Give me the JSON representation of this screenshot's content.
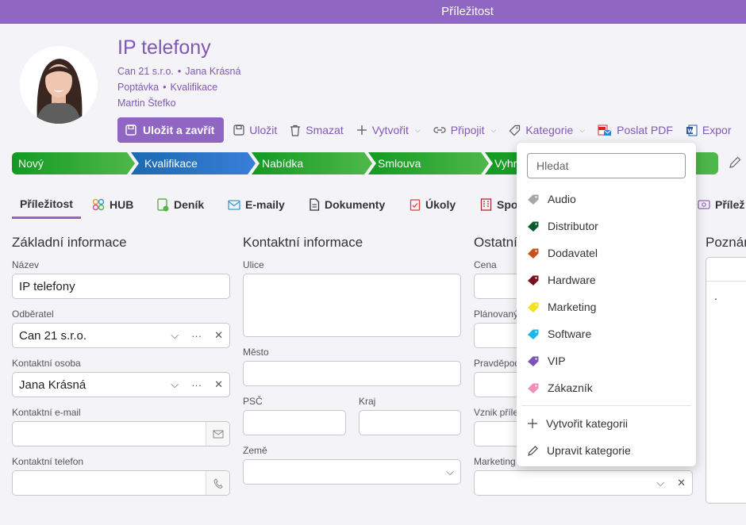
{
  "window": {
    "title": "Příležitost"
  },
  "header": {
    "title": "IP telefony",
    "company": "Can 21 s.r.o.",
    "contact": "Jana Krásná",
    "stage_type": "Poptávka",
    "stage": "Kvalifikace",
    "owner": "Martin Štefko"
  },
  "toolbar": {
    "save_close": "Uložit a zavřít",
    "save": "Uložit",
    "delete": "Smazat",
    "create": "Vytvořit",
    "attach": "Připojit",
    "category": "Kategorie",
    "send_pdf": "Poslat PDF",
    "export": "Expor"
  },
  "stages": [
    "Nový",
    "Kvalifikace",
    "Nabídka",
    "Smlouva",
    "Vyhr"
  ],
  "tabs": [
    "Příležitost",
    "HUB",
    "Deník",
    "E-maily",
    "Dokumenty",
    "Úkoly",
    "Spo",
    "Přílež"
  ],
  "sections": {
    "basic": "Základní informace",
    "contact": "Kontaktní informace",
    "other": "Ostatní",
    "notes": "Poznán"
  },
  "basic": {
    "name_label": "Název",
    "name_value": "IP telefony",
    "customer_label": "Odběratel",
    "customer_value": "Can 21 s.r.o.",
    "person_label": "Kontaktní osoba",
    "person_value": "Jana Krásná",
    "email_label": "Kontaktní e-mail",
    "phone_label": "Kontaktní telefon"
  },
  "contact": {
    "street_label": "Ulice",
    "city_label": "Město",
    "zip_label": "PSČ",
    "region_label": "Kraj",
    "country_label": "Země"
  },
  "other": {
    "price_label": "Cena",
    "planned_label": "Plánovaný",
    "probability_label": "Pravděpod",
    "created_label": "Vznik příle",
    "marketing_label": "Marketing"
  },
  "category_dropdown": {
    "search_placeholder": "Hledat",
    "items": [
      {
        "label": "Audio",
        "color": "#a8a8a8"
      },
      {
        "label": "Distributor",
        "color": "#0b5a2b"
      },
      {
        "label": "Dodavatel",
        "color": "#c8501a"
      },
      {
        "label": "Hardware",
        "color": "#7a1020"
      },
      {
        "label": "Marketing",
        "color": "#f2e21a"
      },
      {
        "label": "Software",
        "color": "#1eb6e8"
      },
      {
        "label": "VIP",
        "color": "#7b55b5"
      },
      {
        "label": "Zákazník",
        "color": "#ef8fb8"
      }
    ],
    "create": "Vytvořit kategorii",
    "edit": "Upravit kategorie"
  },
  "notes": {
    "text": "."
  }
}
